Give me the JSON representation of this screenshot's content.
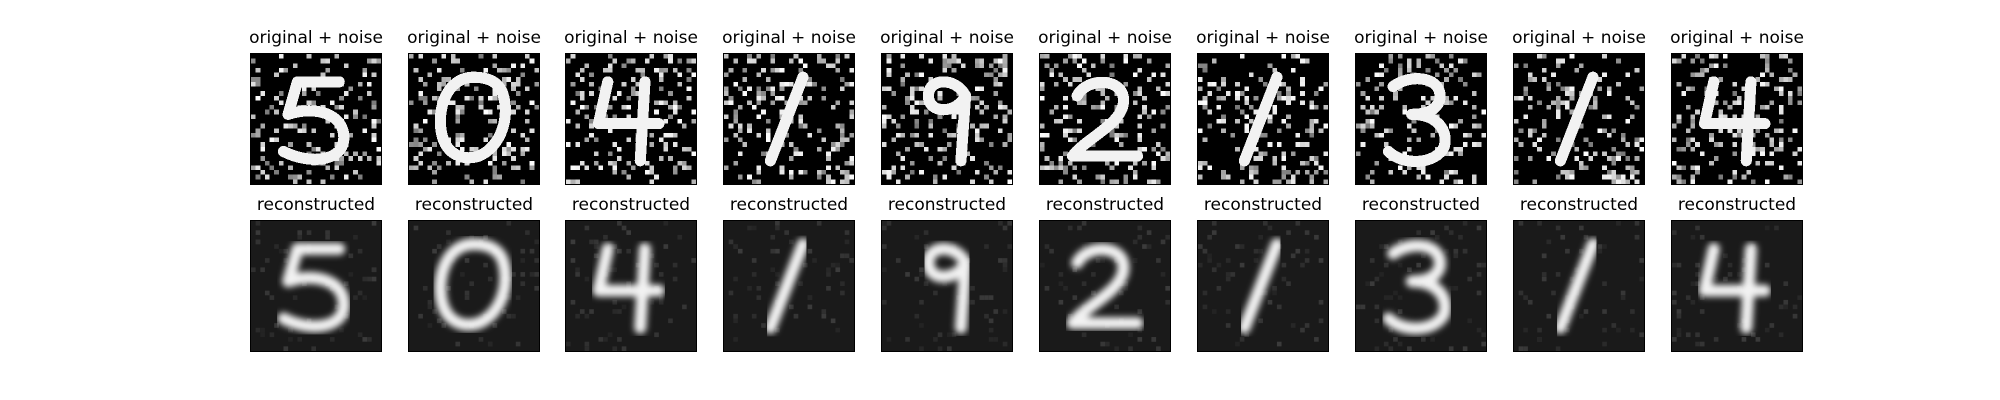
{
  "figure": {
    "rows": [
      {
        "kind": "noisy",
        "titles": [
          "original + noise",
          "original + noise",
          "original + noise",
          "original + noise",
          "original + noise",
          "original + noise",
          "original + noise",
          "original + noise",
          "original + noise",
          "original + noise"
        ]
      },
      {
        "kind": "reconstructed",
        "titles": [
          "reconstructed",
          "reconstructed",
          "reconstructed",
          "reconstructed",
          "reconstructed",
          "reconstructed",
          "reconstructed",
          "reconstructed",
          "reconstructed",
          "reconstructed"
        ]
      }
    ],
    "digits": [
      "5",
      "0",
      "4",
      "1",
      "9",
      "2",
      "1",
      "3",
      "1",
      "4"
    ],
    "colors": {
      "background": "#ffffff",
      "noisy_panel_bg": "#000000",
      "recon_panel_bg": "#1a1a1a",
      "stroke": "#f2f2f2"
    }
  }
}
